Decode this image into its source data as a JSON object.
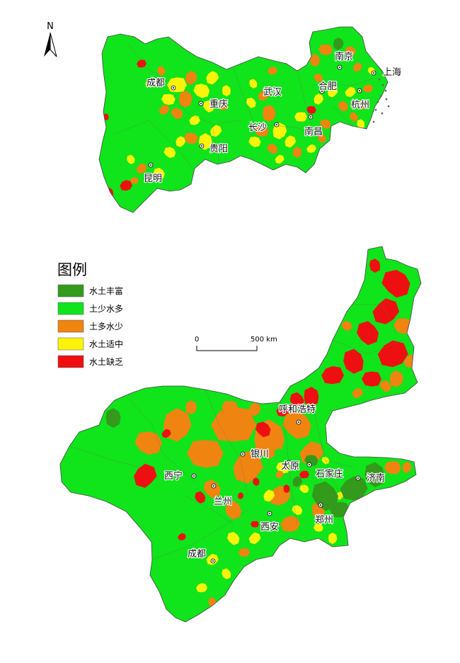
{
  "colors": {
    "rich": "#339a1c",
    "green": "#10e41a",
    "orange": "#f08410",
    "yellow": "#fbf30a",
    "red": "#ee1010",
    "outline": "#444444"
  },
  "north_arrow": {
    "label": "N"
  },
  "legend": {
    "title": "图例",
    "items": [
      {
        "label": "水土丰富",
        "color": "#339a1c"
      },
      {
        "label": "土少水多",
        "color": "#10e41a"
      },
      {
        "label": "土多水少",
        "color": "#f08410"
      },
      {
        "label": "水土适中",
        "color": "#fbf30a"
      },
      {
        "label": "水土缺乏",
        "color": "#ee1010"
      }
    ]
  },
  "scale_bar": {
    "start_label": "0",
    "end_label": "500 km"
  },
  "maps": [
    {
      "name": "south-region",
      "cities": [
        "成都",
        "重庆",
        "贵阳",
        "昆明",
        "武汉",
        "长沙",
        "合肥",
        "南京",
        "上海",
        "杭州",
        "南昌"
      ]
    },
    {
      "name": "north-region",
      "cities": [
        "呼和浩特",
        "银川",
        "太原",
        "石家庄",
        "济南",
        "西宁",
        "兰州",
        "西安",
        "郑州",
        "成都"
      ]
    }
  ]
}
